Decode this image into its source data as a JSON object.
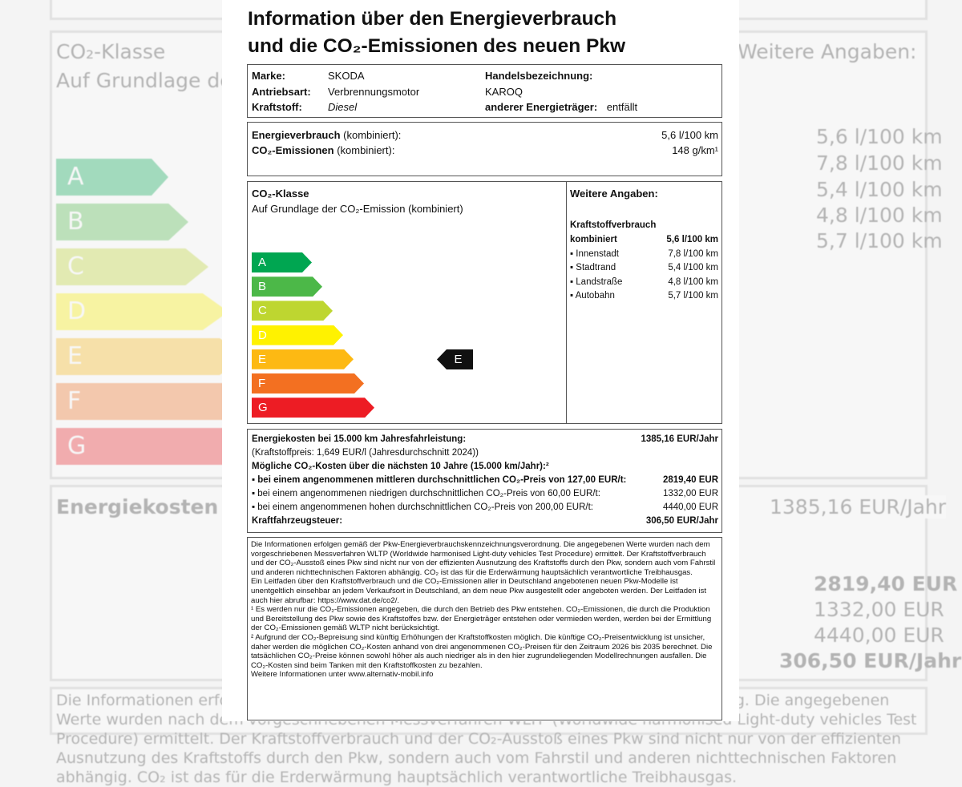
{
  "title_line1": "Information über den Energieverbrauch",
  "title_line2": "und die CO₂-Emissionen des neuen Pkw",
  "vehicle": {
    "brand_label": "Marke:",
    "brand": "SKODA",
    "drive_label": "Antriebsart:",
    "drive": "Verbrennungsmotor",
    "fuel_label": "Kraftstoff:",
    "fuel": "Diesel",
    "trade_label": "Handelsbezeichnung:",
    "trade": "KAROQ",
    "other_label": "anderer Energieträger:",
    "other": "entfällt"
  },
  "consumption": {
    "energy_label": "Energieverbrauch",
    "energy_suffix": "(kombiniert):",
    "energy_value": "5,6 l/100 km",
    "co2_label": "CO₂-Emissionen",
    "co2_suffix": "(kombiniert):",
    "co2_value": "148 g/km¹"
  },
  "co2_class": {
    "heading": "CO₂-Klasse",
    "subheading": "Auf Grundlage der CO₂-Emission (kombiniert)",
    "classes": [
      "A",
      "B",
      "C",
      "D",
      "E",
      "F",
      "G"
    ],
    "colors": [
      "#00a651",
      "#4cb848",
      "#bed630",
      "#fff200",
      "#fdb913",
      "#f37021",
      "#ed1c24"
    ],
    "current": "E"
  },
  "further": {
    "heading": "Weitere Angaben:",
    "sub": "Kraftstoffverbrauch",
    "rows": [
      {
        "label": "kombiniert",
        "value": "5,6 l/100 km"
      },
      {
        "label": "▪ Innenstadt",
        "value": "7,8 l/100 km"
      },
      {
        "label": "▪ Stadtrand",
        "value": "5,4 l/100 km"
      },
      {
        "label": "▪ Landstraße",
        "value": "4,8 l/100 km"
      },
      {
        "label": "▪ Autobahn",
        "value": "5,7 l/100 km"
      }
    ]
  },
  "costs": {
    "energy_label": "Energiekosten bei 15.000 km Jahresfahrleistung:",
    "energy_value": "1385,16 EUR/Jahr",
    "fuel_price": "(Kraftstoffpreis: 1,649 EUR/l (Jahresdurchschnitt 2024))",
    "co2_heading": "Mögliche CO₂-Kosten über die nächsten 10 Jahre (15.000 km/Jahr):²",
    "mid_label": "▪ bei einem angenommenen mittleren durchschnittlichen CO₂-Preis von 127,00 EUR/t:",
    "mid_value": "2819,40 EUR",
    "low_label": "▪ bei einem angenommenen niedrigen durchschnittlichen CO₂-Preis von 60,00 EUR/t:",
    "low_value": "1332,00 EUR",
    "high_label": "▪ bei einem angenommenen hohen durchschnittlichen CO₂-Preis von 200,00 EUR/t:",
    "high_value": "4440,00 EUR",
    "tax_label": "Kraftfahrzeugsteuer:",
    "tax_value": "306,50 EUR/Jahr"
  },
  "fine_print": {
    "p1": "Die Informationen erfolgen gemäß der Pkw-Energieverbrauchskennzeichnungsverordnung. Die angegebenen Werte wurden nach dem vorgeschriebenen Messverfahren WLTP (Worldwide harmonised Light-duty vehicles Test Procedure) ermittelt. Der Kraftstoffverbrauch und der CO₂-Ausstoß eines Pkw sind nicht nur von der effizienten Ausnutzung des Kraftstoffs durch den Pkw, sondern auch vom Fahrstil und anderen nichttechnischen Faktoren abhängig. CO₂ ist das für die Erderwärmung hauptsächlich verantwortliche Treibhausgas.",
    "p2": "Ein Leitfaden über den Kraftstoffverbrauch und die CO₂-Emissionen aller in Deutschland angebotenen neuen Pkw-Modelle ist unentgeltlich einsehbar an jedem Verkaufsort in Deutschland, an dem neue Pkw ausgestellt oder angeboten werden. Der Leitfaden ist auch hier abrufbar: https://www.dat.de/co2/.",
    "p3": "¹ Es werden nur die CO₂-Emissionen angegeben, die durch den Betrieb des Pkw entstehen. CO₂-Emissionen, die durch die Produktion und Bereitstellung des Pkw sowie des Kraftstoffes bzw. der Energieträger entstehen oder vermieden werden, werden bei der Ermittlung der CO₂-Emissionen gemäß WLTP nicht berücksichtigt.",
    "p4": "² Aufgrund der CO₂-Bepreisung sind künftig Erhöhungen der Kraftstoffkosten möglich. Die künftige CO₂-Preisentwicklung ist unsicher, daher werden die möglichen CO₂-Kosten anhand von drei angenommenen CO₂-Preisen für den Zeitraum 2026 bis 2035 berechnet. Die tatsächlichen CO₂-Preise können sowohl höher als auch niedriger als in den hier zugrundeliegenden Modellrechnungen ausfallen. Die CO₂-Kosten sind beim Tanken mit den Kraftstoffkosten zu bezahlen.",
    "p5": "Weitere Informationen unter www.alternativ-mobil.info"
  }
}
